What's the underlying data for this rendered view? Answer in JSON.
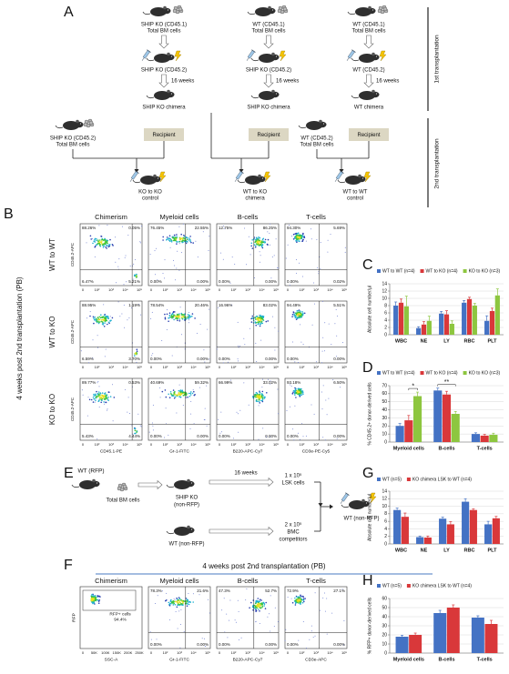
{
  "panel_a": {
    "letter": "A",
    "donors": [
      {
        "line1": "SHIP KO (CD45.1)",
        "line2": "Total BM cells"
      },
      {
        "line1": "WT (CD45.1)",
        "line2": "Total BM cells"
      },
      {
        "line1": "WT (CD45.1)",
        "line2": "Total BM cells"
      }
    ],
    "recipients": [
      "SHIP KO (CD45.2)",
      "SHIP KO (CD45.2)",
      "WT (CD45.2)"
    ],
    "interval": [
      "16 weeks",
      "16 weeks",
      "16 weeks"
    ],
    "chimeras": [
      "SHIP KO chimera",
      "SHIP KO chimera",
      "WT chimera"
    ],
    "first_transplantation": "1st transplantation",
    "second_transplantation": "2nd transplantation",
    "second_donors": [
      {
        "line1": "SHIP KO (CD45.2)",
        "line2": "Total BM cells"
      },
      {
        "line1": "WT (CD45.2)",
        "line2": "Total BM cells"
      }
    ],
    "recipient_boxes": [
      "Recipient",
      "Recipient",
      "Recipient"
    ],
    "outcomes": [
      {
        "line1": "KO to KO",
        "line2": "control"
      },
      {
        "line1": "WT to KO",
        "line2": "chimera"
      },
      {
        "line1": "WT to WT",
        "line2": "control"
      }
    ]
  },
  "panel_b": {
    "letter": "B",
    "side_label": "4 weeks post 2nd transplantation (PB)",
    "columns": [
      "Chimerism",
      "Myeloid cells",
      "B-cells",
      "T-cells"
    ],
    "y_label": "CD45.2-APC",
    "x_labels": [
      "CD45.1-PE",
      "Gr-1-FITC",
      "B220-APC-Cy7",
      "CD3e-PE-Cy5"
    ],
    "ticks": [
      "0",
      "10²",
      "10³",
      "10⁴",
      "10⁵"
    ],
    "rows": [
      {
        "label": "WT to WT",
        "plots": [
          {
            "quadrants": [
              "88.26%",
              "0.05%",
              "6.47%",
              "5.21%"
            ]
          },
          {
            "quadrants": [
              "76.45%",
              "22.55%",
              "0.00%",
              "0.00%"
            ]
          },
          {
            "quadrants": [
              "12.75%",
              "86.25%",
              "0.00%",
              "0.00%"
            ]
          },
          {
            "quadrants": [
              "94.30%",
              "5.69%",
              "0.00%",
              "0.02%"
            ]
          }
        ]
      },
      {
        "label": "WT to KO",
        "plots": [
          {
            "quadrants": [
              "88.95%",
              "1.19%",
              "6.59%",
              "3.70%"
            ]
          },
          {
            "quadrants": [
              "78.54%",
              "20.46%",
              "0.00%",
              "0.00%"
            ]
          },
          {
            "quadrants": [
              "16.96%",
              "83.02%",
              "0.00%",
              "0.00%"
            ]
          },
          {
            "quadrants": [
              "94.49%",
              "5.51%",
              "0.00%",
              "0.00%"
            ]
          }
        ]
      },
      {
        "label": "KO to KO",
        "plots": [
          {
            "quadrants": [
              "89.77%",
              "0.53%",
              "5.43%",
              "4.44%"
            ]
          },
          {
            "quadrants": [
              "40.69%",
              "59.32%",
              "0.00%",
              "0.00%"
            ]
          },
          {
            "quadrants": [
              "66.99%",
              "33.02%",
              "0.00%",
              "0.00%"
            ]
          },
          {
            "quadrants": [
              "93.18%",
              "6.50%",
              "0.00%",
              "0.00%"
            ]
          }
        ]
      }
    ]
  },
  "panel_e": {
    "letter": "E",
    "donor": "WT (RFP)",
    "donor_cells": "Total BM cells",
    "recipient_line1": "SHIP KO",
    "recipient_line2": "(non-RFP)",
    "interval": "16 weeks",
    "lsk_line1": "1 x 10⁵",
    "lsk_line2": "LSK cells",
    "competitor": "WT (non-RFP)",
    "bmc_line1": "2 x 10⁵",
    "bmc_line2": "BMC",
    "bmc_line3": "competitors",
    "final_recipient": "WT (non-RFP)"
  },
  "panel_f": {
    "letter": "F",
    "title": "4 weeks post 2nd transplantation (PB)",
    "columns": [
      "Chimerism",
      "Myeloid cells",
      "B-cells",
      "T-cells"
    ],
    "gate_label": "RFP+ cells",
    "gate_value": "94.4%",
    "chimerism_y_label": "RFP",
    "chimerism_x_label": "SSC-A",
    "chimerism_ticks": [
      "0",
      "50K",
      "100K",
      "150K",
      "200K",
      "250K"
    ],
    "x_labels": [
      "Gr-1-FITC",
      "B220-APC-Cy7",
      "CD3e-APC"
    ],
    "ticks": [
      "0",
      "10²",
      "10³",
      "10⁴",
      "10⁵"
    ],
    "plots": [
      {
        "quadrants": [
          "78.3%",
          "21.6%",
          "0.00%",
          "0.00%"
        ]
      },
      {
        "quadrants": [
          "47.3%",
          "52.7%",
          "0.00%",
          "0.00%"
        ]
      },
      {
        "quadrants": [
          "72.9%",
          "27.1%",
          "0.00%",
          "0.00%"
        ]
      }
    ]
  },
  "chart_data": [
    {
      "type": "bar",
      "letter": "C",
      "y_label": "Absolute cell number/µl",
      "categories": [
        "WBC",
        "NE",
        "LY",
        "RBC",
        "PLT"
      ],
      "series": [
        {
          "name": "WT to WT (n=4)",
          "color": "#4472c4",
          "values": [
            8,
            1.8,
            5.8,
            8.8,
            3.8
          ],
          "errors": [
            1,
            0.4,
            0.6,
            0.6,
            1.4
          ]
        },
        {
          "name": "WT to KO (n=4)",
          "color": "#d9383a",
          "values": [
            8.8,
            2.8,
            5.6,
            9.8,
            6.5
          ],
          "errors": [
            1,
            0.8,
            1,
            0.5,
            0.8
          ]
        },
        {
          "name": "KO to KO (n=3)",
          "color": "#8dc63f",
          "values": [
            7.8,
            3.8,
            3,
            8,
            10.8
          ],
          "errors": [
            2.8,
            1.3,
            0.8,
            0.6,
            1.8
          ]
        }
      ],
      "ylim": [
        0,
        14
      ],
      "yticks": [
        0,
        2,
        4,
        6,
        8,
        10,
        12,
        14
      ],
      "grid": true
    },
    {
      "type": "bar",
      "letter": "D",
      "y_label": "% CD45.2+ donor-derived cells",
      "categories": [
        "Myeloid cells",
        "B-cells",
        "T-cells"
      ],
      "series": [
        {
          "name": "WT to WT (n=4)",
          "color": "#4472c4",
          "values": [
            20,
            64,
            10
          ],
          "errors": [
            3,
            3,
            1.5
          ]
        },
        {
          "name": "WT to KO (n=4)",
          "color": "#d9383a",
          "values": [
            27,
            59,
            8
          ],
          "errors": [
            6,
            4,
            1.5
          ]
        },
        {
          "name": "KO to KO (n=3)",
          "color": "#8dc63f",
          "values": [
            57,
            35,
            9
          ],
          "errors": [
            5,
            3,
            2
          ]
        }
      ],
      "annotations": [
        "*",
        "**"
      ],
      "ylim": [
        0,
        70
      ],
      "yticks": [
        0,
        10,
        20,
        30,
        40,
        50,
        60,
        70
      ],
      "grid": true
    },
    {
      "type": "bar",
      "letter": "G",
      "y_label": "Absolute cell number/µl",
      "categories": [
        "WBC",
        "NE",
        "LY",
        "RBC",
        "PLT"
      ],
      "series": [
        {
          "name": "WT (n=5)",
          "color": "#4472c4",
          "values": [
            9,
            1.8,
            6.7,
            11.2,
            5.2
          ],
          "errors": [
            0.5,
            0.3,
            0.4,
            0.8,
            0.8
          ]
        },
        {
          "name": "KO chimera LSK to WT (n=4)",
          "color": "#d9383a",
          "values": [
            7.2,
            1.7,
            5.2,
            9,
            6.8
          ],
          "errors": [
            1,
            0.4,
            0.7,
            0.3,
            0.5
          ]
        }
      ],
      "ylim": [
        0,
        14
      ],
      "yticks": [
        0,
        2,
        4,
        6,
        8,
        10,
        12,
        14
      ],
      "grid": true
    },
    {
      "type": "bar",
      "letter": "H",
      "y_label": "% RFP+ donor-derived cells",
      "categories": [
        "Myeloid cells",
        "B-cells",
        "T-cells"
      ],
      "series": [
        {
          "name": "WT (n=5)",
          "color": "#4472c4",
          "values": [
            18,
            44,
            39
          ],
          "errors": [
            1.5,
            3,
            2
          ]
        },
        {
          "name": "KO chimera LSK to WT (n=4)",
          "color": "#d9383a",
          "values": [
            20,
            50,
            32
          ],
          "errors": [
            2,
            3,
            4
          ]
        }
      ],
      "ylim": [
        0,
        60
      ],
      "yticks": [
        0,
        10,
        20,
        30,
        40,
        50,
        60
      ],
      "grid": true
    }
  ]
}
